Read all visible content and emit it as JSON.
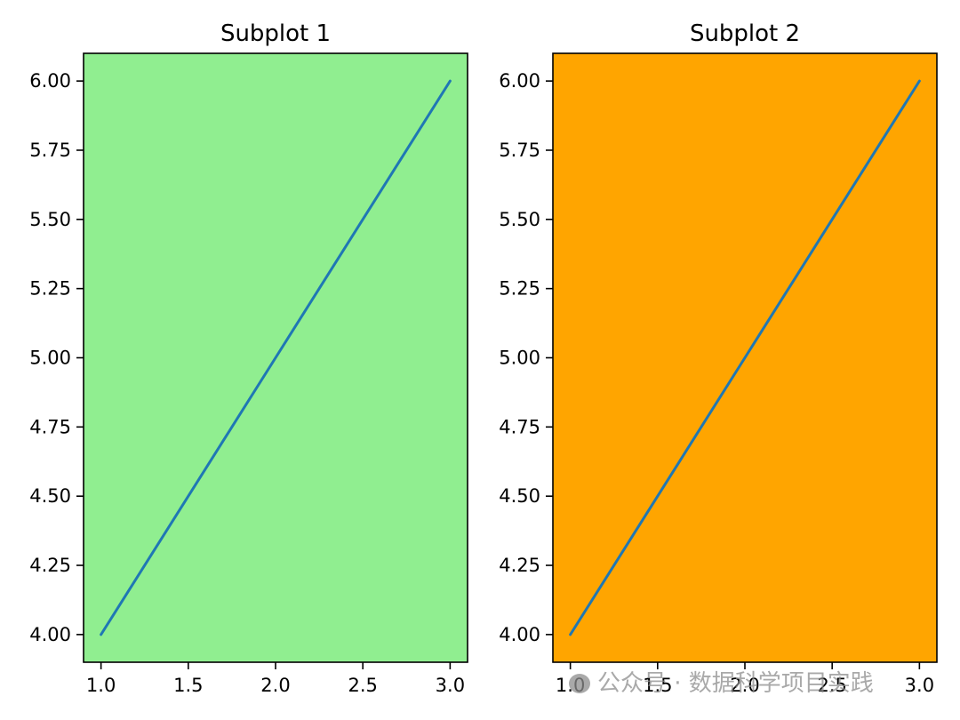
{
  "chart_data": [
    {
      "type": "line",
      "title": "Subplot 1",
      "x": [
        1,
        2,
        3
      ],
      "series": [
        {
          "values": [
            4,
            5,
            6
          ],
          "color": "#1f77b4"
        }
      ],
      "xlim": [
        0.9,
        3.1
      ],
      "ylim": [
        3.9,
        6.1
      ],
      "xticks": [
        "1.0",
        "1.5",
        "2.0",
        "2.5",
        "3.0"
      ],
      "yticks": [
        "4.00",
        "4.25",
        "4.50",
        "4.75",
        "5.00",
        "5.25",
        "5.50",
        "5.75",
        "6.00"
      ],
      "background": "#90ee90",
      "grid": false
    },
    {
      "type": "line",
      "title": "Subplot 2",
      "x": [
        1,
        2,
        3
      ],
      "series": [
        {
          "values": [
            4,
            5,
            6
          ],
          "color": "#1f77b4"
        }
      ],
      "xlim": [
        0.9,
        3.1
      ],
      "ylim": [
        3.9,
        6.1
      ],
      "xticks": [
        "1.0",
        "1.5",
        "2.0",
        "2.5",
        "3.0"
      ],
      "yticks": [
        "4.00",
        "4.25",
        "4.50",
        "4.75",
        "5.00",
        "5.25",
        "5.50",
        "5.75",
        "6.00"
      ],
      "background": "#ffa500",
      "grid": false
    }
  ],
  "watermark": {
    "text": "公众号 · 数据科学项目实践",
    "icon": "wechat-logo-icon"
  }
}
